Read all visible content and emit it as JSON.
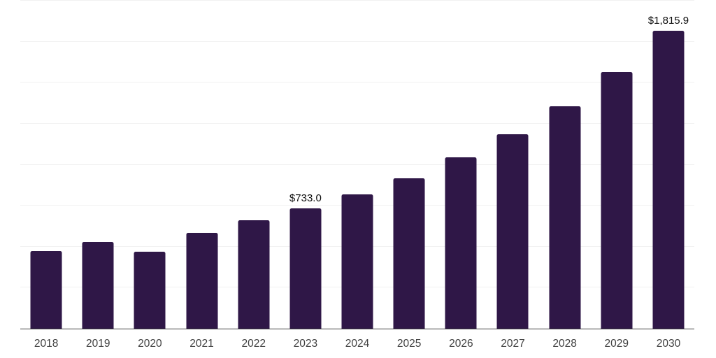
{
  "chart_data": {
    "type": "bar",
    "title": "",
    "xlabel": "",
    "ylabel": "",
    "categories": [
      "2018",
      "2019",
      "2020",
      "2021",
      "2022",
      "2023",
      "2024",
      "2025",
      "2026",
      "2027",
      "2028",
      "2029",
      "2030"
    ],
    "values": [
      475,
      530,
      471,
      585,
      663,
      733.0,
      820,
      918,
      1043,
      1185,
      1357,
      1566,
      1815.9
    ],
    "bar_labels": [
      "",
      "",
      "",
      "",
      "",
      "$733.0",
      "",
      "",
      "",
      "",
      "",
      "",
      "$1,815.9"
    ],
    "ylim": [
      0,
      2000
    ],
    "grid_step": 250,
    "grid": true,
    "legend": false,
    "y_tick_labels_shown": false
  },
  "colors": {
    "bar": "#2f1747",
    "axis_line": "#3d3d3d",
    "tick_label": "#404040",
    "value_label": "#0d0d0d",
    "gridline": "#f1f1f1",
    "background": "#ffffff"
  }
}
